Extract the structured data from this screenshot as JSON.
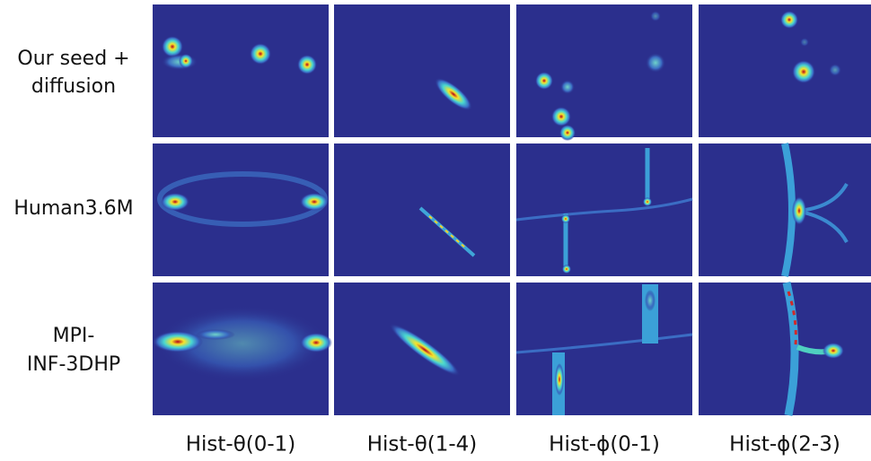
{
  "row_labels": [
    [
      "Our seed +",
      "diffusion"
    ],
    [
      "Human3.6M"
    ],
    [
      "MPI-",
      "INF-3DHP"
    ]
  ],
  "column_labels": [
    "Hist-θ(0-1)",
    "Hist-θ(1-4)",
    "Hist-ϕ(0-1)",
    "Hist-ϕ(2-3)"
  ]
}
